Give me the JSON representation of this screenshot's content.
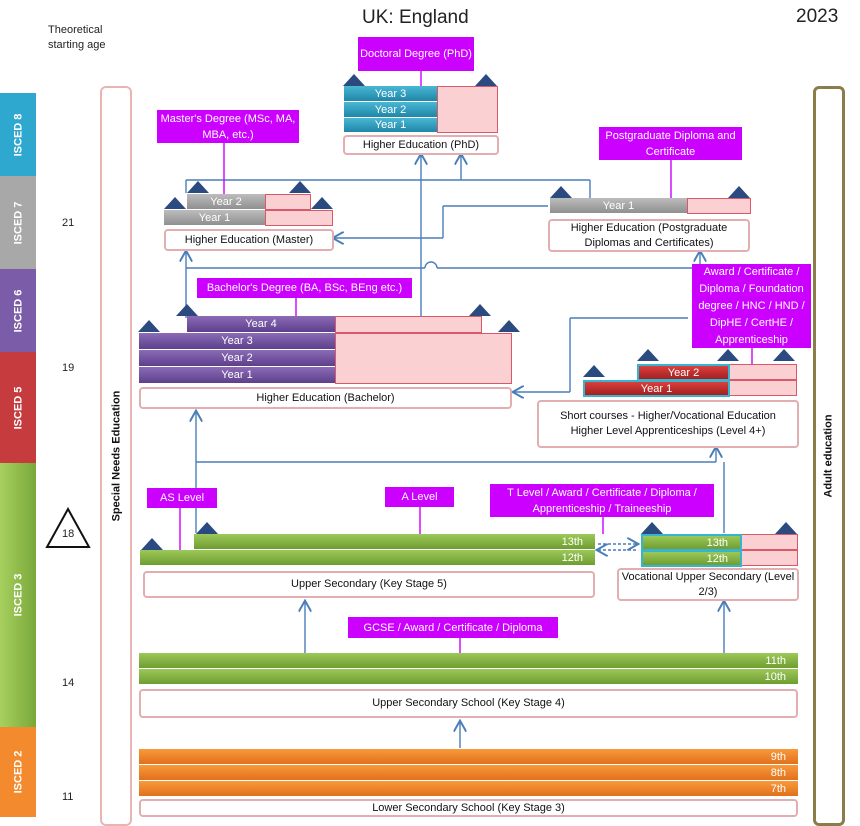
{
  "header": {
    "title": "UK: England",
    "year": "2023",
    "theoretical_label": "Theoretical starting age"
  },
  "ages": [
    "21",
    "19",
    "18",
    "14",
    "11"
  ],
  "isced": [
    "ISCED 8",
    "ISCED 7",
    "ISCED 6",
    "ISCED 5",
    "ISCED 3",
    "ISCED 2"
  ],
  "side": {
    "special_needs": "Special Needs Education",
    "adult": "Adult education"
  },
  "phd": {
    "qualification": "Doctoral Degree (PhD)",
    "years": [
      "Year 3",
      "Year 2",
      "Year 1"
    ],
    "label": "Higher Education (PhD)"
  },
  "master": {
    "qualification": "Master's Degree (MSc, MA, MBA, etc.)",
    "years": [
      "Year 2",
      "Year 1"
    ],
    "label": "Higher Education (Master)"
  },
  "pgdip": {
    "qualification": "Postgraduate Diploma and Certificate",
    "years": [
      "Year 1"
    ],
    "label": "Higher Education (Postgraduate Diplomas and Certificates)"
  },
  "bachelor": {
    "qualification": "Bachelor's Degree (BA, BSc, BEng etc.)",
    "years": [
      "Year 4",
      "Year 3",
      "Year 2",
      "Year 1"
    ],
    "label": "Higher Education (Bachelor)"
  },
  "short": {
    "qualification": "Award / Certificate / Diploma / Foundation degree / HNC / HND / DipHE / CertHE / Apprenticeship",
    "years": [
      "Year 2",
      "Year 1"
    ],
    "label": "Short courses - Higher/Vocational Education Higher Level Apprenticeships (Level 4+)"
  },
  "ks5": {
    "as_level": "AS Level",
    "a_level": "A Level",
    "grades": [
      "13th",
      "12th"
    ],
    "label": "Upper Secondary (Key Stage 5)"
  },
  "vocational": {
    "qualification": "T Level / Award / Certificate / Diploma / Apprenticeship / Traineeship",
    "grades": [
      "13th",
      "12th"
    ],
    "label": "Vocational Upper Secondary (Level 2/3)"
  },
  "ks4": {
    "qualification": "GCSE / Award / Certificate / Diploma",
    "grades": [
      "11th",
      "10th"
    ],
    "label": "Upper Secondary School (Key Stage 4)"
  },
  "ks3": {
    "grades": [
      "9th",
      "8th",
      "7th"
    ],
    "label": "Lower Secondary School (Key Stage 3)"
  },
  "colors": {
    "isced8": "#2fa8d0",
    "isced7": "#a8a8a8",
    "isced6": "#7b5ca8",
    "isced5": "#c63b3d",
    "isced3": "#8cbd4c",
    "isced2": "#f48a2e",
    "qualification": "#cc00ff",
    "arrow": "#4a7eb8"
  }
}
